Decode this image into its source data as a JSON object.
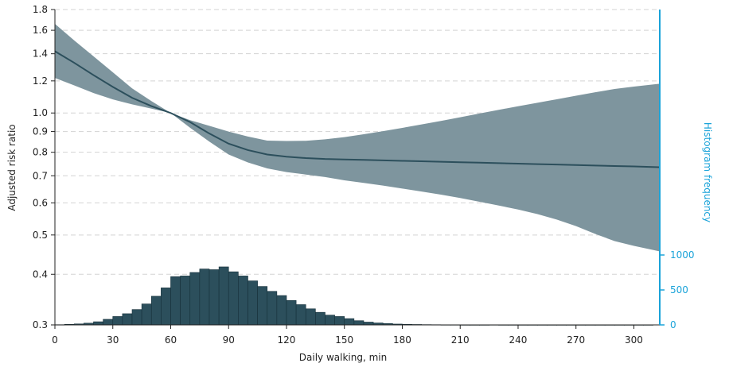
{
  "chart_data": {
    "type": "line",
    "xlabel": "Daily walking, min",
    "ylabel": "Adjusted risk ratio",
    "y2label": "Histogram frequency",
    "xlim": [
      0,
      313
    ],
    "ylim": [
      0.3,
      1.8
    ],
    "yscale": "log",
    "xticks": [
      0,
      30,
      60,
      90,
      120,
      150,
      180,
      210,
      240,
      270,
      300
    ],
    "yticks": [
      0.3,
      0.4,
      0.5,
      0.6,
      0.7,
      0.8,
      0.9,
      1.0,
      1.2,
      1.4,
      1.6,
      1.8
    ],
    "ytick_labels": [
      "0.3",
      "0.4",
      "0.5",
      "0.6",
      "0.7",
      "0.8",
      "0.9",
      "1.0",
      "1.2",
      "1.4",
      "1.6",
      "1.8"
    ],
    "y2ticks": [
      0,
      500,
      1000
    ],
    "y2ticks_labels": [
      "0",
      "500",
      "1000"
    ],
    "grid": true,
    "colors": {
      "band": "#7e959e",
      "line": "#2c4f5c",
      "bars": "#2c4f5c",
      "bar_edge": "#16303a",
      "right_axis": "#1aa3d9",
      "grid": "#d3d3d3"
    },
    "series": [
      {
        "x": [
          0,
          10,
          20,
          30,
          40,
          50,
          60,
          70,
          80,
          90,
          100,
          110,
          120,
          130,
          140,
          150,
          160,
          170,
          180,
          190,
          200,
          210,
          220,
          230,
          240,
          250,
          260,
          270,
          280,
          290,
          300,
          313
        ],
        "y": [
          1.42,
          1.33,
          1.24,
          1.16,
          1.09,
          1.04,
          1.0,
          0.95,
          0.89,
          0.84,
          0.81,
          0.79,
          0.78,
          0.774,
          0.77,
          0.768,
          0.766,
          0.764,
          0.762,
          0.76,
          0.758,
          0.756,
          0.754,
          0.752,
          0.75,
          0.748,
          0.746,
          0.744,
          0.742,
          0.74,
          0.738,
          0.735
        ],
        "lower": [
          1.22,
          1.17,
          1.12,
          1.08,
          1.05,
          1.025,
          1.0,
          0.92,
          0.85,
          0.79,
          0.755,
          0.73,
          0.715,
          0.705,
          0.695,
          0.682,
          0.672,
          0.662,
          0.651,
          0.64,
          0.629,
          0.617,
          0.604,
          0.591,
          0.578,
          0.563,
          0.546,
          0.526,
          0.503,
          0.483,
          0.47,
          0.456
        ],
        "upper": [
          1.66,
          1.51,
          1.38,
          1.26,
          1.15,
          1.07,
          1.0,
          0.96,
          0.93,
          0.9,
          0.875,
          0.855,
          0.853,
          0.854,
          0.861,
          0.872,
          0.886,
          0.902,
          0.919,
          0.937,
          0.956,
          0.976,
          0.997,
          1.018,
          1.039,
          1.06,
          1.081,
          1.103,
          1.125,
          1.146,
          1.162,
          1.18
        ]
      }
    ],
    "histogram": {
      "bin_width": 5,
      "x_start": 0,
      "counts": [
        3,
        8,
        14,
        25,
        45,
        80,
        120,
        160,
        220,
        300,
        410,
        530,
        690,
        700,
        750,
        800,
        790,
        830,
        760,
        700,
        630,
        550,
        480,
        420,
        350,
        290,
        230,
        180,
        140,
        120,
        90,
        60,
        40,
        28,
        20,
        12,
        8,
        6,
        4,
        3,
        2,
        2,
        1,
        1,
        1,
        2,
        1,
        1,
        1,
        1,
        1,
        1,
        1,
        1,
        1,
        1,
        1,
        1,
        1,
        1,
        1,
        1
      ]
    }
  }
}
